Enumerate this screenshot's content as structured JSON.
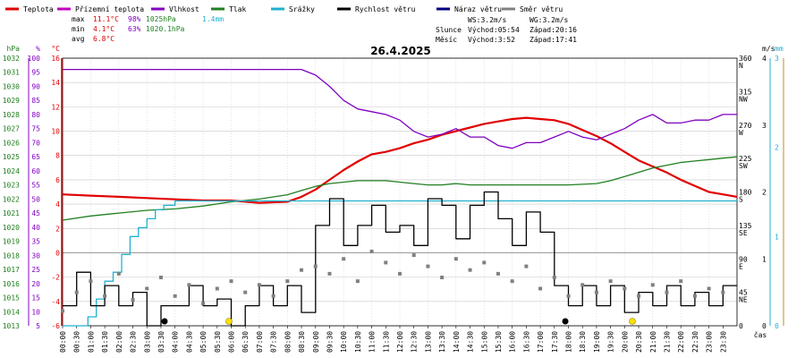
{
  "legend": [
    {
      "label": "Teplota",
      "color": "#e00000"
    },
    {
      "label": "Přízemní teplota",
      "color": "#c000c0"
    },
    {
      "label": "Vlhkost",
      "color": "#8000c0"
    },
    {
      "label": "Tlak",
      "color": "#208020"
    },
    {
      "label": "Srážky",
      "color": "#20b0d0"
    },
    {
      "label": "Rychlost větru",
      "color": "#000000"
    },
    {
      "label": "Náraz větru",
      "color": "#000080"
    },
    {
      "label": "Směr větru",
      "color": "#808080"
    }
  ],
  "stats": {
    "max": {
      "label": "max",
      "temp": "11.1°C",
      "hum": "98%",
      "press": "1025hPa",
      "rain": "1.4mm"
    },
    "min": {
      "label": "min",
      "temp": "4.1°C",
      "hum": "63%",
      "press": "1020.1hPa"
    },
    "avg": {
      "label": "avg",
      "temp": "6.8°C"
    }
  },
  "info": {
    "ws": "WS:3.2m/s",
    "wg": "WG:3.2m/s",
    "sun_label": "Slunce",
    "sunrise": "Východ:05:54",
    "sunset": "Západ:20:16",
    "moon_label": "Měsíc",
    "moonrise": "Východ:3:52",
    "moonset": "Západ:17:41"
  },
  "colors": {
    "temp": "#e00000",
    "hum": "#8000c0",
    "press": "#208020",
    "rain": "#20b0d0",
    "wind": "#000000",
    "dir": "#808080",
    "grid": "#c8c8c8",
    "zero": "#a0a0a0"
  },
  "chart_data": {
    "type": "line",
    "title": "26.4.2025",
    "xlabel": "čas",
    "x_ticks": [
      "00:00",
      "00:30",
      "01:00",
      "01:30",
      "02:00",
      "02:30",
      "03:00",
      "03:30",
      "04:00",
      "04:30",
      "05:00",
      "05:30",
      "06:00",
      "06:30",
      "07:00",
      "07:30",
      "08:00",
      "08:30",
      "09:00",
      "09:30",
      "10:00",
      "10:30",
      "11:00",
      "11:30",
      "12:00",
      "12:30",
      "13:00",
      "13:30",
      "14:00",
      "14:30",
      "15:00",
      "15:30",
      "16:00",
      "16:30",
      "17:00",
      "17:30",
      "18:00",
      "18:30",
      "19:00",
      "19:30",
      "20:00",
      "20:30",
      "21:00",
      "21:30",
      "22:00",
      "22:30",
      "23:00",
      "23:30"
    ],
    "axes": {
      "pressure": {
        "unit": "hPa",
        "ticks": [
          "1032",
          "1031",
          "1030",
          "1029",
          "1028",
          "1027",
          "1026",
          "1025",
          "1024",
          "1023",
          "1022",
          "1021",
          "1020",
          "1019",
          "1018",
          "1017",
          "1016",
          "1015",
          "1014",
          "1013"
        ],
        "range": [
          1013,
          1032
        ]
      },
      "humidity": {
        "unit": "%",
        "ticks": [
          "100",
          "95",
          "90",
          "85",
          "80",
          "75",
          "70",
          "65",
          "60",
          "55",
          "50",
          "45",
          "40",
          "35",
          "30",
          "25",
          "20",
          "15",
          "10",
          "5"
        ],
        "range": [
          5,
          100
        ]
      },
      "temperature": {
        "unit": "°C",
        "ticks": [
          "16",
          "14",
          "12",
          "10",
          "8",
          "6",
          "4",
          "2",
          "0",
          "-2",
          "-4",
          "-6"
        ],
        "range": [
          -6,
          16
        ]
      },
      "direction": {
        "unit": "",
        "ticks": [
          "360 N",
          "315 NW",
          "270 W",
          "225 SW",
          "180 S",
          "135 SE",
          "90 E",
          "45 NE",
          "0"
        ],
        "range": [
          0,
          360
        ]
      },
      "wind": {
        "unit": "m/s",
        "ticks": [
          "4",
          "3",
          "2",
          "1",
          "0"
        ],
        "range": [
          0,
          4
        ]
      },
      "rain": {
        "unit": "mm",
        "ticks": [
          "3",
          "2",
          "1",
          "0"
        ],
        "range": [
          0,
          3
        ]
      }
    },
    "series": [
      {
        "name": "Teplota",
        "unit": "°C",
        "x": [
          0,
          1,
          2,
          3,
          4,
          5,
          6,
          7,
          8,
          8.5,
          9,
          9.5,
          10,
          10.5,
          11,
          11.5,
          12,
          12.5,
          13,
          13.5,
          14,
          14.5,
          15,
          15.5,
          16,
          16.5,
          17,
          17.5,
          18,
          18.5,
          19,
          19.5,
          20,
          20.5,
          21,
          21.5,
          22,
          22.5,
          23,
          23.5,
          24
        ],
        "values": [
          4.8,
          4.7,
          4.6,
          4.5,
          4.4,
          4.3,
          4.3,
          4.1,
          4.2,
          4.6,
          5.2,
          6.0,
          6.8,
          7.5,
          8.1,
          8.3,
          8.6,
          9.0,
          9.3,
          9.7,
          10.0,
          10.3,
          10.6,
          10.8,
          11.0,
          11.1,
          11.0,
          10.9,
          10.6,
          10.1,
          9.6,
          9.0,
          8.3,
          7.6,
          7.1,
          6.6,
          6.0,
          5.5,
          5.0,
          4.8,
          4.6
        ]
      },
      {
        "name": "Vlhkost",
        "unit": "%",
        "x": [
          0,
          2,
          4,
          6,
          8,
          8.5,
          9,
          9.5,
          10,
          10.5,
          11,
          11.5,
          12,
          12.5,
          13,
          13.5,
          14,
          14.5,
          15,
          15.5,
          16,
          16.5,
          17,
          17.5,
          18,
          18.5,
          19,
          19.5,
          20,
          20.5,
          21,
          21.5,
          22,
          22.5,
          23,
          23.5,
          24
        ],
        "values": [
          96,
          96,
          96,
          96,
          96,
          96,
          94,
          90,
          85,
          82,
          81,
          80,
          78,
          74,
          72,
          73,
          75,
          72,
          72,
          69,
          68,
          70,
          70,
          72,
          74,
          72,
          71,
          73,
          75,
          78,
          80,
          77,
          77,
          78,
          78,
          80,
          80
        ]
      },
      {
        "name": "Tlak",
        "unit": "hPa",
        "x": [
          0,
          1,
          2,
          3,
          4,
          5,
          6,
          7,
          8,
          8.5,
          9,
          9.5,
          10,
          10.5,
          11,
          11.5,
          12,
          12.5,
          13,
          13.5,
          14,
          14.5,
          15,
          16,
          17,
          18,
          19,
          19.5,
          20,
          20.5,
          21,
          21.5,
          22,
          22.5,
          23,
          23.5,
          24
        ],
        "values": [
          1020.5,
          1020.8,
          1021.0,
          1021.2,
          1021.3,
          1021.5,
          1021.8,
          1022.0,
          1022.3,
          1022.6,
          1022.9,
          1023.1,
          1023.2,
          1023.3,
          1023.3,
          1023.3,
          1023.2,
          1023.1,
          1023.0,
          1023.0,
          1023.1,
          1023.0,
          1023.0,
          1023.0,
          1023.0,
          1023.0,
          1023.1,
          1023.3,
          1023.6,
          1023.9,
          1024.2,
          1024.4,
          1024.6,
          1024.7,
          1024.8,
          1024.9,
          1025.0
        ]
      },
      {
        "name": "Srážky",
        "unit": "mm",
        "x": [
          0,
          0.6,
          0.9,
          1.2,
          1.5,
          1.8,
          2.1,
          2.4,
          2.7,
          3.0,
          3.3,
          3.6,
          4.0,
          6,
          8,
          10,
          12,
          14,
          16,
          18,
          20,
          22,
          24
        ],
        "values": [
          0,
          0,
          0.1,
          0.3,
          0.5,
          0.6,
          0.8,
          1.0,
          1.1,
          1.2,
          1.3,
          1.35,
          1.4,
          1.4,
          1.4,
          1.4,
          1.4,
          1.4,
          1.4,
          1.4,
          1.4,
          1.4,
          1.4
        ]
      },
      {
        "name": "Rychlost větru",
        "unit": "m/s",
        "x": [
          0,
          0.5,
          1,
          1.5,
          2,
          2.5,
          3,
          3.5,
          4,
          4.5,
          5,
          5.5,
          6,
          6.5,
          7,
          7.5,
          8,
          8.5,
          9,
          9.5,
          10,
          10.5,
          11,
          11.5,
          12,
          12.5,
          13,
          13.5,
          14,
          14.5,
          15,
          15.5,
          16,
          16.5,
          17,
          17.5,
          18,
          18.5,
          19,
          19.5,
          20,
          20.5,
          21,
          21.5,
          22,
          22.5,
          23,
          23.5,
          24
        ],
        "values": [
          0.3,
          0.8,
          0.3,
          0.6,
          0.3,
          0.5,
          0,
          0.3,
          0.3,
          0.6,
          0.3,
          0.4,
          0,
          0.3,
          0.6,
          0.3,
          0.6,
          0.2,
          1.5,
          1.9,
          1.2,
          1.5,
          1.8,
          1.4,
          1.5,
          1.2,
          1.9,
          1.8,
          1.3,
          1.8,
          2.0,
          1.6,
          1.2,
          1.7,
          1.4,
          0.6,
          0.3,
          0.6,
          0.3,
          0.6,
          0.2,
          0.5,
          0.3,
          0.6,
          0.3,
          0.5,
          0.3,
          0.6,
          0.6
        ]
      },
      {
        "name": "Směr větru",
        "unit": "°",
        "x": [
          0,
          0.5,
          1,
          1.5,
          2,
          2.5,
          3,
          3.5,
          4,
          4.5,
          5,
          5.5,
          6,
          6.5,
          7,
          7.5,
          8,
          8.5,
          9,
          9.5,
          10,
          10.5,
          11,
          11.5,
          12,
          12.5,
          13,
          13.5,
          14,
          14.5,
          15,
          15.5,
          16,
          16.5,
          17,
          17.5,
          18,
          18.5,
          19,
          19.5,
          20,
          20.5,
          21,
          21.5,
          22,
          22.5,
          23,
          23.5
        ],
        "values": [
          20,
          45,
          60,
          40,
          70,
          35,
          50,
          65,
          40,
          55,
          30,
          50,
          60,
          45,
          55,
          40,
          60,
          75,
          80,
          70,
          90,
          60,
          100,
          85,
          70,
          95,
          80,
          65,
          90,
          75,
          85,
          70,
          60,
          80,
          50,
          65,
          40,
          55,
          45,
          60,
          50,
          40,
          55,
          45,
          60,
          40,
          50,
          45
        ]
      }
    ]
  }
}
